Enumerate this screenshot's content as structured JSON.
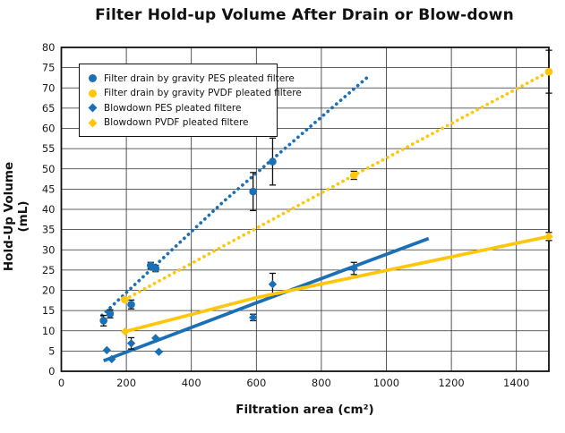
{
  "title": "Filter Hold-up Volume After Drain or Blow-down",
  "chart_data": {
    "type": "scatter",
    "title": "Filter Hold-up Volume After Drain or Blow-down",
    "xlabel": "Filtration area (cm²)",
    "ylabel": "Hold-Up Volume (mL)",
    "xlim": [
      0,
      1500
    ],
    "ylim": [
      0,
      80
    ],
    "xticks": [
      0,
      200,
      400,
      600,
      800,
      1000,
      1200,
      1400
    ],
    "yticks": [
      0,
      5,
      10,
      15,
      20,
      25,
      30,
      35,
      40,
      45,
      50,
      55,
      60,
      65,
      70,
      75,
      80
    ],
    "grid": true,
    "legend_position": "top-left",
    "colors": {
      "pes_blue": "#1B6FB5",
      "pvdf_yellow": "#FFC60A",
      "error_bar": "#111111"
    },
    "series": [
      {
        "name": "Filter drain by gravity PES pleated filtere",
        "marker": "circle",
        "color": "#1B6FB5",
        "line": "dashed",
        "points": [
          {
            "x": 130,
            "y": 12.5,
            "err": 1.3
          },
          {
            "x": 150,
            "y": 14.2,
            "err": 1.0
          },
          {
            "x": 215,
            "y": 16.5,
            "err": 1.1
          },
          {
            "x": 275,
            "y": 26.1,
            "err": 0.8
          },
          {
            "x": 290,
            "y": 25.4,
            "err": 0.8
          },
          {
            "x": 590,
            "y": 44.4,
            "err": 4.7
          },
          {
            "x": 650,
            "y": 51.8,
            "err": 5.8
          }
        ],
        "trend": [
          [
            125,
            13.8
          ],
          [
            500,
            42.0
          ],
          [
            940,
            72.5
          ]
        ]
      },
      {
        "name": "Filter drain by gravity PVDF pleated filtere",
        "marker": "circle",
        "color": "#FFC60A",
        "line": "dashed",
        "points": [
          {
            "x": 195,
            "y": 17.7,
            "err": 0
          },
          {
            "x": 900,
            "y": 48.4,
            "err": 1.0
          },
          {
            "x": 1500,
            "y": 74.0,
            "err": 5.3
          }
        ],
        "trend": [
          [
            195,
            17.7
          ],
          [
            900,
            48.4
          ],
          [
            1500,
            74.0
          ]
        ]
      },
      {
        "name": "Blowdown PES pleated filtere",
        "marker": "diamond",
        "color": "#1B6FB5",
        "line": "solid",
        "points": [
          {
            "x": 140,
            "y": 5.2,
            "err": 0
          },
          {
            "x": 155,
            "y": 3.0,
            "err": 0
          },
          {
            "x": 215,
            "y": 6.9,
            "err": 1.4
          },
          {
            "x": 290,
            "y": 8.2,
            "err": 0
          },
          {
            "x": 300,
            "y": 4.8,
            "err": 0
          },
          {
            "x": 590,
            "y": 13.3,
            "err": 0.8
          },
          {
            "x": 650,
            "y": 21.5,
            "err": 2.7
          },
          {
            "x": 900,
            "y": 25.4,
            "err": 1.5
          }
        ],
        "trend": [
          [
            130,
            2.6
          ],
          [
            600,
            16.9
          ],
          [
            1130,
            32.8
          ]
        ]
      },
      {
        "name": "Blowdown PVDF pleated filtere",
        "marker": "diamond",
        "color": "#FFC60A",
        "line": "solid",
        "points": [
          {
            "x": 196,
            "y": 9.8,
            "err": 0
          },
          {
            "x": 1500,
            "y": 33.3,
            "err": 1.0
          }
        ],
        "trend": [
          [
            196,
            9.8
          ],
          [
            600,
            18.2
          ],
          [
            1500,
            33.3
          ]
        ]
      }
    ]
  }
}
